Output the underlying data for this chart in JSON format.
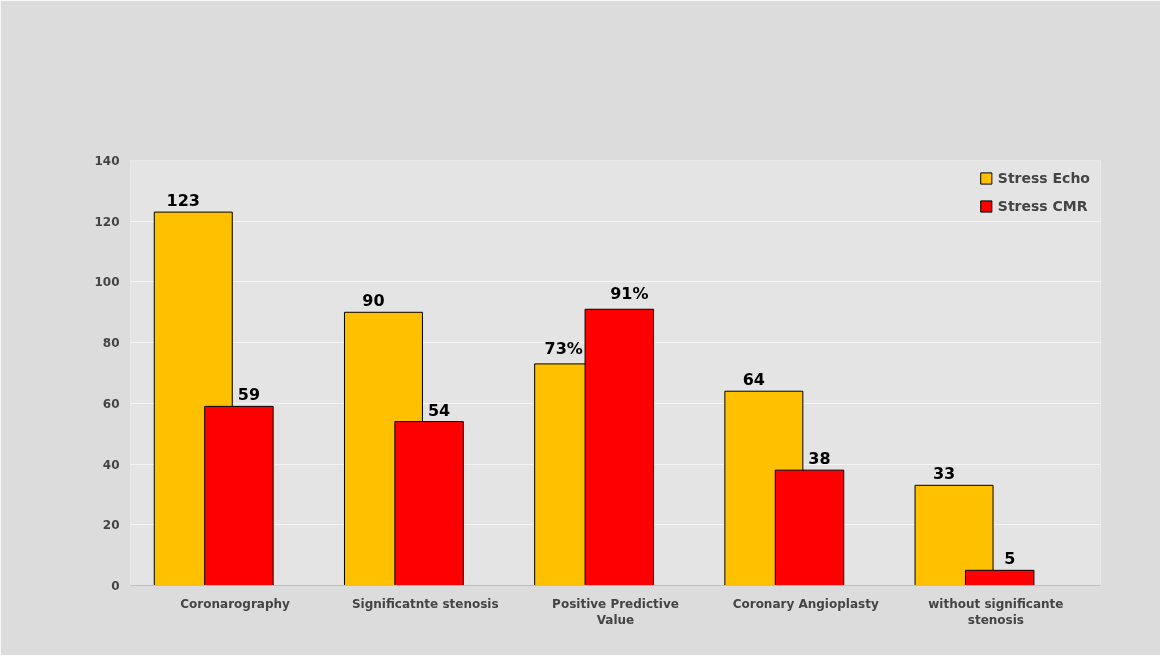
{
  "chart_data": {
    "type": "bar",
    "categories": [
      "Coronarography",
      "Significatnte stenosis",
      "Positive Predictive Value",
      "Coronary Angioplasty",
      "without significante stenosis"
    ],
    "series": [
      {
        "name": "Stress Echo",
        "color": "#ffc000",
        "values": [
          123,
          90,
          73,
          64,
          33
        ],
        "value_labels": [
          "123",
          "90",
          "73%",
          "64",
          "33"
        ]
      },
      {
        "name": "Stress CMR",
        "color": "#ff0000",
        "values": [
          59,
          54,
          91,
          38,
          5
        ],
        "value_labels": [
          "59",
          "54",
          "91%",
          "38",
          "5"
        ]
      }
    ],
    "ylim": [
      0,
      140
    ],
    "yticks": [
      0,
      20,
      40,
      60,
      80,
      100,
      120,
      140
    ],
    "grid": "y",
    "legend": "top right"
  }
}
